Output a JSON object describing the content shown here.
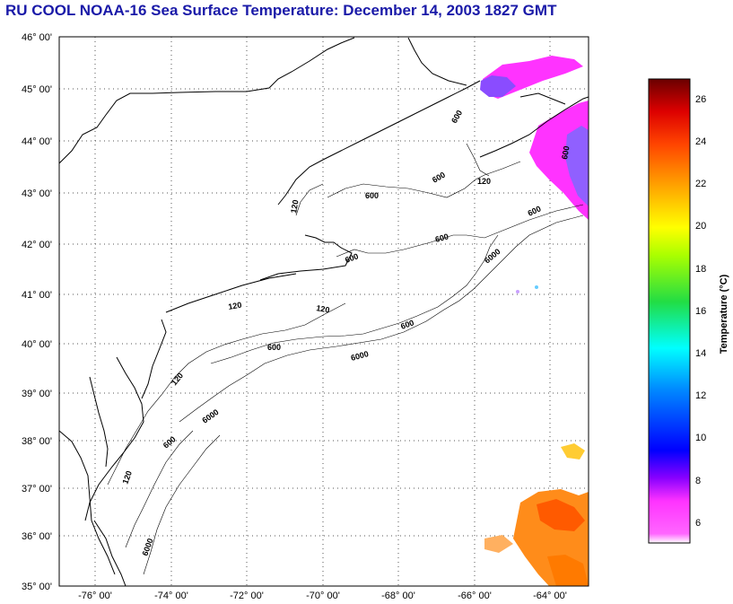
{
  "title": "RU COOL  NOAA-16  Sea Surface Temperature:  December 14, 2003 1827 GMT",
  "latitude_labels": [
    "46° 00'",
    "45° 00'",
    "44° 00'",
    "43° 00'",
    "42° 00'",
    "41° 00'",
    "40° 00'",
    "39° 00'",
    "38° 00'",
    "37° 00'",
    "36° 00'",
    "35° 00'"
  ],
  "longitude_labels": [
    "-76° 00'",
    "-74° 00'",
    "-72° 00'",
    "-70° 00'",
    "-68° 00'",
    "-66° 00'",
    "-64° 00'"
  ],
  "contour_labels": [
    "600",
    "600",
    "600",
    "600",
    "600",
    "600",
    "600",
    "600",
    "600",
    "600",
    "6000",
    "6000",
    "6000",
    "6000",
    "120",
    "120",
    "120",
    "120",
    "120",
    "120"
  ],
  "colorbar": {
    "label": "Temperature (°C)",
    "ticks": [
      "26",
      "24",
      "22",
      "20",
      "18",
      "16",
      "14",
      "12",
      "10",
      "8",
      "6"
    ],
    "colors": {
      "max": "#7a0000",
      "red": "#e00000",
      "orange": "#ff8800",
      "yellow": "#ffff00",
      "green": "#22cc22",
      "cyan": "#00ffff",
      "blue": "#0000ff",
      "purple": "#8800ff",
      "magenta": "#ff33ff",
      "min": "#ffffff"
    }
  },
  "map": {
    "lat_range": [
      35,
      46
    ],
    "lon_range": [
      -77,
      -63
    ],
    "grid": "dotted",
    "sst_patches_colors": [
      "#ff33ff",
      "#8844ff",
      "#ff8800",
      "#ff6600",
      "#ffcc00",
      "#ff3300"
    ]
  }
}
